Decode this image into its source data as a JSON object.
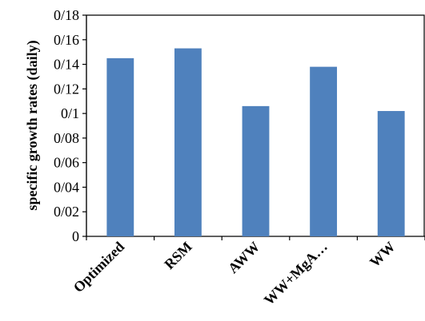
{
  "chart_data": {
    "type": "bar",
    "title": "",
    "xlabel": "",
    "ylabel": "specific growth rates (daily)",
    "categories": [
      "Optimized",
      "RSM",
      "AWW",
      "WW+MgA…",
      "WW"
    ],
    "values": [
      0.145,
      0.153,
      0.106,
      0.138,
      0.102
    ],
    "ylim": [
      0,
      0.18
    ],
    "yticks": [
      0,
      0.02,
      0.04,
      0.06,
      0.08,
      0.1,
      0.12,
      0.14,
      0.16,
      0.18
    ],
    "ytick_labels": [
      "0",
      "0/02",
      "0/04",
      "0/06",
      "0/08",
      "0/1",
      "0/12",
      "0/14",
      "0/16",
      "0/18"
    ],
    "bar_color": "#4f81bd",
    "grid": false,
    "legend": "none"
  }
}
